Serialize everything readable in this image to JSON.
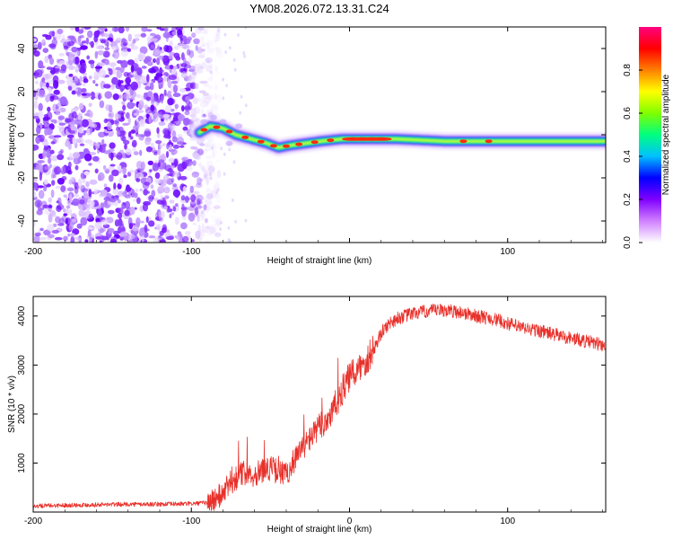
{
  "title": "YM08.2026.072.13.31.C24",
  "chart_data": [
    {
      "type": "heatmap",
      "name": "spectrogram",
      "xlabel": "Height of straight line (km)",
      "ylabel": "Frequency (Hz)",
      "xlim": [
        -200,
        162
      ],
      "ylim": [
        -50,
        50
      ],
      "x_ticks": [
        -200,
        -100,
        0,
        100
      ],
      "x_tick_labels": [
        "-200",
        "-100",
        "",
        "100"
      ],
      "y_ticks": [
        -40,
        -20,
        0,
        20,
        40
      ],
      "y_tick_labels": [
        "-40",
        "-20",
        "0",
        "20",
        "40"
      ],
      "noise_region_x": [
        -200,
        -90
      ],
      "ridge": [
        {
          "x": -95,
          "f": 1
        },
        {
          "x": -88,
          "f": 4
        },
        {
          "x": -80,
          "f": 3
        },
        {
          "x": -72,
          "f": 0
        },
        {
          "x": -62,
          "f": -2
        },
        {
          "x": -52,
          "f": -4
        },
        {
          "x": -45,
          "f": -6
        },
        {
          "x": -38,
          "f": -5
        },
        {
          "x": -28,
          "f": -4
        },
        {
          "x": -18,
          "f": -3
        },
        {
          "x": -5,
          "f": -2
        },
        {
          "x": 10,
          "f": -2
        },
        {
          "x": 30,
          "f": -2
        },
        {
          "x": 60,
          "f": -3
        },
        {
          "x": 75,
          "f": -3
        },
        {
          "x": 90,
          "f": -3
        },
        {
          "x": 110,
          "f": -3
        },
        {
          "x": 130,
          "f": -3
        },
        {
          "x": 160,
          "f": -3
        }
      ],
      "colorbar": {
        "label": "Normalized spectral amplitude",
        "ticks": [
          0.0,
          0.2,
          0.4,
          0.6,
          0.8
        ],
        "tick_labels": [
          "0.0",
          "0.2",
          "0.4",
          "0.6",
          "0.8"
        ],
        "range": [
          0,
          1
        ],
        "colors": [
          "#ffffff",
          "#d080ff",
          "#8000ff",
          "#0000ff",
          "#00c0ff",
          "#00ff80",
          "#80ff00",
          "#ffff00",
          "#ff8000",
          "#ff0000",
          "#ff0080"
        ]
      }
    },
    {
      "type": "line",
      "name": "snr",
      "xlabel": "Height of straight line (km)",
      "ylabel": "SNR (10 * v/v)",
      "xlim": [
        -200,
        162
      ],
      "ylim": [
        0,
        4400
      ],
      "x_ticks": [
        -200,
        -100,
        0,
        100
      ],
      "x_tick_labels": [
        "-200",
        "-100",
        "0",
        "100"
      ],
      "y_ticks": [
        1000,
        2000,
        3000,
        4000
      ],
      "y_tick_labels": [
        "1000",
        "2000",
        "3000",
        "4000"
      ],
      "series": [
        {
          "name": "SNR",
          "color": "#e8302a",
          "x": [
            -200,
            -180,
            -160,
            -140,
            -120,
            -100,
            -90,
            -85,
            -80,
            -75,
            -70,
            -65,
            -60,
            -55,
            -50,
            -45,
            -40,
            -35,
            -30,
            -25,
            -20,
            -15,
            -10,
            -5,
            0,
            5,
            10,
            15,
            20,
            25,
            30,
            40,
            50,
            60,
            70,
            80,
            90,
            100,
            110,
            120,
            130,
            140,
            150,
            162
          ],
          "y": [
            120,
            140,
            150,
            160,
            160,
            170,
            190,
            260,
            380,
            600,
            750,
            820,
            760,
            860,
            900,
            820,
            760,
            1050,
            1300,
            1500,
            1700,
            1850,
            2100,
            2450,
            2750,
            2900,
            3050,
            3300,
            3650,
            3850,
            3950,
            4050,
            4100,
            4120,
            4080,
            4000,
            3950,
            3850,
            3750,
            3700,
            3620,
            3550,
            3480,
            3400
          ]
        }
      ]
    }
  ]
}
